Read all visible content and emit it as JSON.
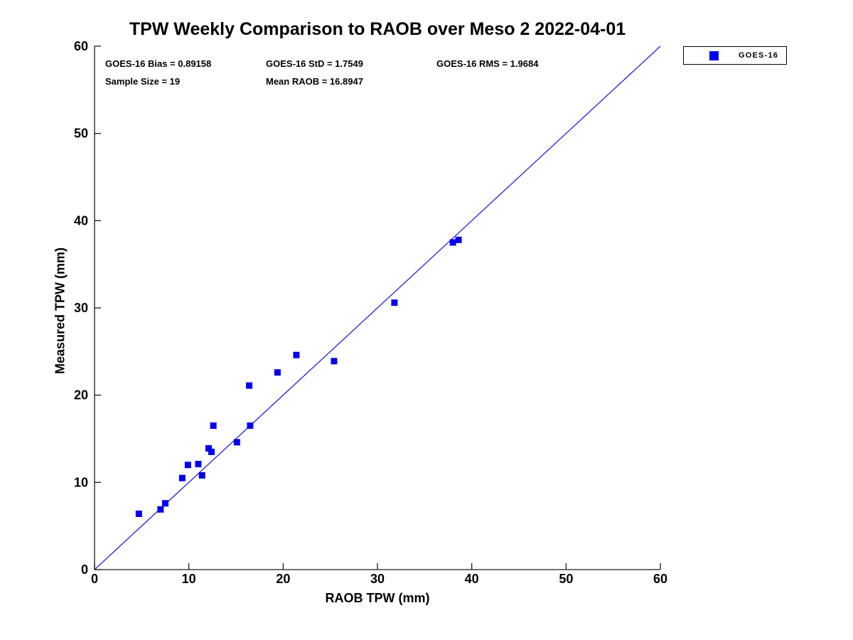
{
  "colors": {
    "marker": "#0000ee",
    "line": "#2222dd",
    "axis": "#1a1a1a",
    "text": "#000000",
    "background": "#ffffff"
  },
  "legend": {
    "entries": [
      {
        "label": "GOES-16",
        "marker": "square-icon",
        "color": "#0000ee"
      }
    ]
  },
  "stats": {
    "bias": "GOES-16 Bias = 0.89158",
    "std": "GOES-16 StD = 1.7549",
    "rms": "GOES-16 RMS = 1.9684",
    "sample_size": "Sample Size = 19",
    "mean_raob": "Mean RAOB = 16.8947"
  },
  "chart_data": {
    "type": "scatter",
    "title": "TPW Weekly Comparison to RAOB over Meso 2 2022-04-01",
    "xlabel": "RAOB TPW (mm)",
    "ylabel": "Measured TPW (mm)",
    "xlim": [
      0,
      60
    ],
    "ylim": [
      0,
      60
    ],
    "xticks": [
      0,
      10,
      20,
      30,
      40,
      50,
      60
    ],
    "yticks": [
      0,
      10,
      20,
      30,
      40,
      50,
      60
    ],
    "grid": false,
    "legend_position": "top-right-outside",
    "series": [
      {
        "name": "GOES-16",
        "marker": "square",
        "color": "#0000ee",
        "points": [
          [
            4.7,
            6.4
          ],
          [
            7.0,
            6.9
          ],
          [
            7.5,
            7.6
          ],
          [
            9.3,
            10.5
          ],
          [
            9.9,
            12.0
          ],
          [
            11.0,
            12.1
          ],
          [
            11.4,
            10.8
          ],
          [
            12.1,
            13.9
          ],
          [
            12.4,
            13.5
          ],
          [
            12.6,
            16.5
          ],
          [
            15.1,
            14.6
          ],
          [
            16.4,
            21.1
          ],
          [
            16.5,
            16.5
          ],
          [
            19.4,
            22.6
          ],
          [
            21.4,
            24.6
          ],
          [
            25.4,
            23.9
          ],
          [
            31.8,
            30.6
          ],
          [
            38.0,
            37.5
          ],
          [
            38.6,
            37.8
          ]
        ]
      }
    ],
    "reference_line": {
      "from": [
        0,
        0
      ],
      "to": [
        60,
        60
      ],
      "color": "#2222dd"
    },
    "annotations": [
      "GOES-16 Bias = 0.89158",
      "GOES-16 StD = 1.7549",
      "GOES-16 RMS = 1.9684",
      "Sample Size = 19",
      "Mean RAOB = 16.8947"
    ]
  }
}
